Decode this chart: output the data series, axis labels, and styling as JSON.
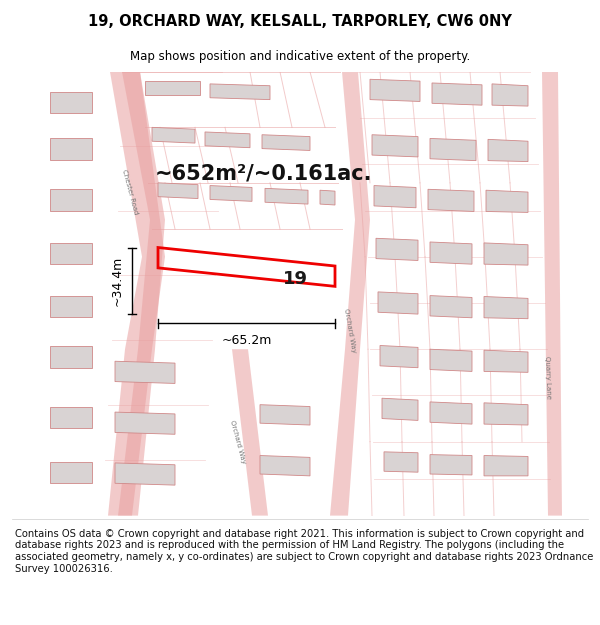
{
  "title": "19, ORCHARD WAY, KELSALL, TARPORLEY, CW6 0NY",
  "subtitle": "Map shows position and indicative extent of the property.",
  "footer": "Contains OS data © Crown copyright and database right 2021. This information is subject to Crown copyright and database rights 2023 and is reproduced with the permission of HM Land Registry. The polygons (including the associated geometry, namely x, y co-ordinates) are subject to Crown copyright and database rights 2023 Ordnance Survey 100026316.",
  "bg_color": "#ffffff",
  "map_bg": "#faf5f5",
  "road_color": "#e8a0a0",
  "road_edge_color": "#cc7777",
  "building_fill": "#d9d3d3",
  "building_edge": "#d08888",
  "highlight_color": "#ee0000",
  "area_text": "~652m²/~0.161ac.",
  "number_text": "19",
  "dim_width": "~65.2m",
  "dim_height": "~34.4m",
  "title_fontsize": 10.5,
  "subtitle_fontsize": 8.5,
  "footer_fontsize": 7.2,
  "area_fontsize": 15,
  "number_fontsize": 13,
  "dim_fontsize": 9
}
